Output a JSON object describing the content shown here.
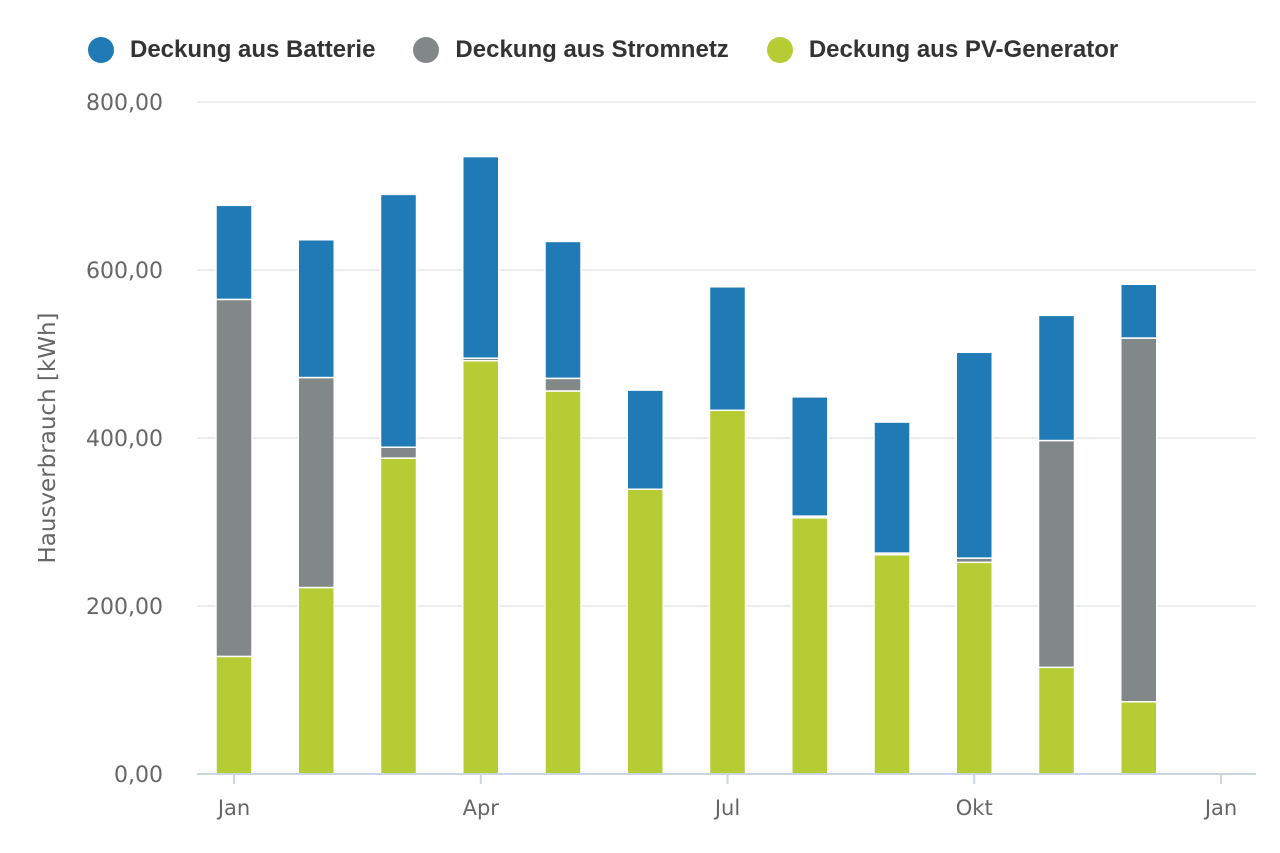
{
  "chart_data": {
    "type": "bar",
    "stacked": true,
    "title": "",
    "xlabel": "",
    "ylabel": "Hausverbrauch [kWh]",
    "ylim": [
      0,
      800
    ],
    "y_ticks": [
      "0,00",
      "200,00",
      "400,00",
      "600,00",
      "800,00"
    ],
    "x_ticks": [
      {
        "label": "Jan",
        "month": 1
      },
      {
        "label": "Apr",
        "month": 4
      },
      {
        "label": "Jul",
        "month": 7
      },
      {
        "label": "Okt",
        "month": 10
      },
      {
        "label": "Jan",
        "month": 13
      }
    ],
    "months": [
      1,
      2,
      3,
      4,
      5,
      6,
      7,
      8,
      9,
      10,
      11,
      12
    ],
    "grid": true,
    "legend_position": "top",
    "series": [
      {
        "name": "Deckung aus PV-Generator",
        "color": "#b5cc34",
        "values": [
          140,
          222,
          376,
          492,
          456,
          339,
          433,
          305,
          261,
          252,
          127,
          86
        ]
      },
      {
        "name": "Deckung aus Stromnetz",
        "color": "#828887",
        "values": [
          425,
          250,
          13,
          3,
          15,
          0,
          0,
          2,
          2,
          5,
          270,
          433
        ]
      },
      {
        "name": "Deckung aus Batterie",
        "color": "#1f7ab5",
        "values": [
          112,
          164,
          301,
          240,
          163,
          118,
          147,
          142,
          156,
          245,
          149,
          64
        ]
      }
    ],
    "legend_order": [
      2,
      1,
      0
    ]
  }
}
